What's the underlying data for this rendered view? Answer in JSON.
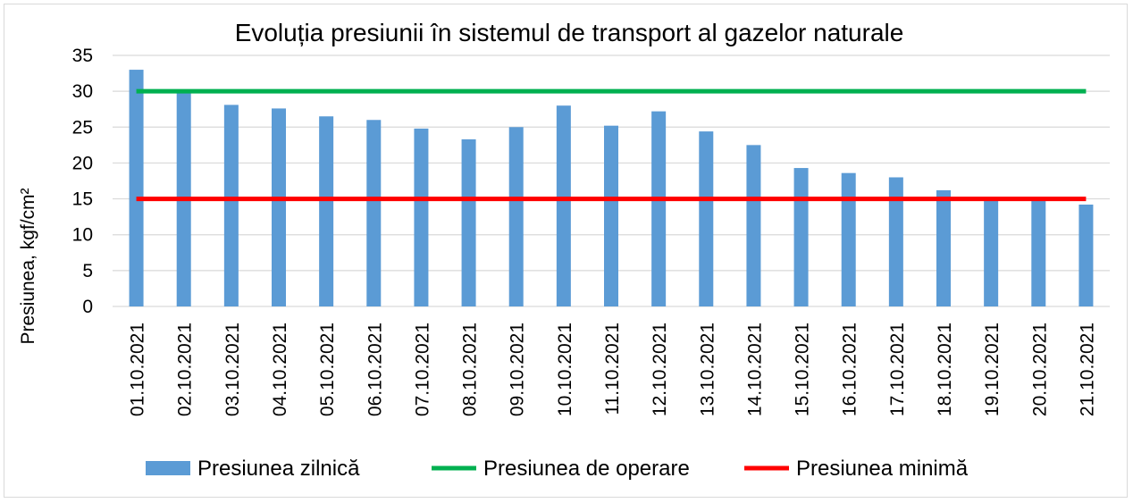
{
  "chart_data": {
    "type": "bar",
    "title": "Evoluția presiunii în sistemul de transport al gazelor naturale",
    "ylabel": "Presiunea, kgf/cm²",
    "xlabel": "",
    "ylim": [
      0,
      35
    ],
    "yticks": [
      0,
      5,
      10,
      15,
      20,
      25,
      30,
      35
    ],
    "grid": true,
    "legend_position": "bottom",
    "categories": [
      "01.10.2021",
      "02.10.2021",
      "03.10.2021",
      "04.10.2021",
      "05.10.2021",
      "06.10.2021",
      "07.10.2021",
      "08.10.2021",
      "09.10.2021",
      "10.10.2021",
      "11.10.2021",
      "12.10.2021",
      "13.10.2021",
      "14.10.2021",
      "15.10.2021",
      "16.10.2021",
      "17.10.2021",
      "18.10.2021",
      "19.10.2021",
      "20.10.2021",
      "21.10.2021"
    ],
    "series": [
      {
        "name": "Presiunea zilnică",
        "kind": "bar",
        "color": "#5b9bd5",
        "values": [
          33.0,
          30.0,
          28.1,
          27.6,
          26.5,
          26.0,
          24.8,
          23.3,
          25.0,
          28.0,
          25.2,
          27.2,
          24.4,
          22.5,
          19.3,
          18.6,
          18.0,
          16.2,
          15.0,
          15.0,
          14.2
        ]
      },
      {
        "name": "Presiunea de operare",
        "kind": "line",
        "color": "#00b050",
        "values": [
          30,
          30,
          30,
          30,
          30,
          30,
          30,
          30,
          30,
          30,
          30,
          30,
          30,
          30,
          30,
          30,
          30,
          30,
          30,
          30,
          30
        ]
      },
      {
        "name": "Presiunea minimă",
        "kind": "line",
        "color": "#ff0000",
        "values": [
          15,
          15,
          15,
          15,
          15,
          15,
          15,
          15,
          15,
          15,
          15,
          15,
          15,
          15,
          15,
          15,
          15,
          15,
          15,
          15,
          15
        ]
      }
    ]
  }
}
